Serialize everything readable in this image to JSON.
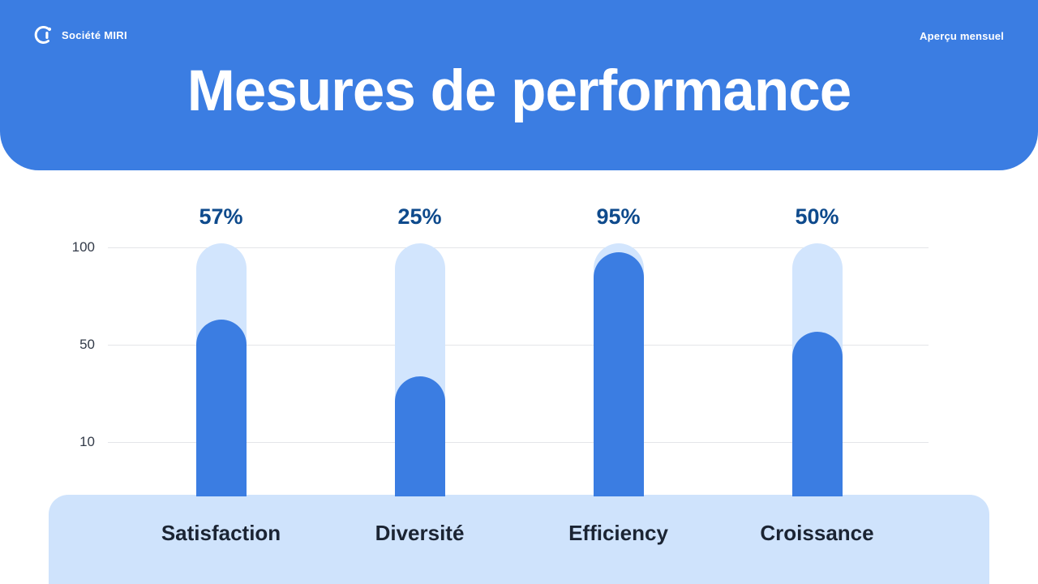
{
  "header": {
    "company_name": "Société MIRI",
    "top_right_label": "Aperçu mensuel",
    "title": "Mesures de performance",
    "bg_color": "#3b7de2",
    "text_color": "#ffffff",
    "logo_icon": "company-logo-icon"
  },
  "chart_data": {
    "type": "bar",
    "title": "Mesures de performance",
    "categories": [
      "Satisfaction",
      "Diversité",
      "Efficiency",
      "Croissance"
    ],
    "values": [
      57,
      25,
      95,
      50
    ],
    "value_labels": [
      "57%",
      "25%",
      "95%",
      "50%"
    ],
    "y_ticks": [
      100,
      50,
      10
    ],
    "ylim": [
      0,
      100
    ],
    "grid": true,
    "legend": false,
    "bar_color": "#3b7de2",
    "track_color": "#d2e5fd",
    "footer_band_color": "#cfe3fc",
    "value_label_color": "#0e4a8c",
    "category_label_color": "#1b2433",
    "tick_label_color": "#333b49",
    "gridline_color": "#e4e5e9"
  }
}
